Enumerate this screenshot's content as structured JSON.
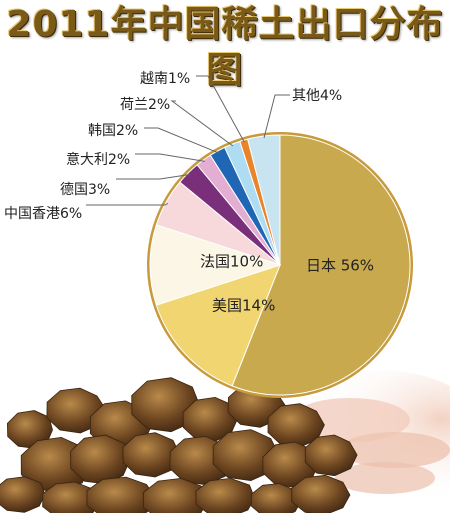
{
  "title": "2011年中国稀土出口分布图",
  "colors": {
    "title": "#7a5a18",
    "pie_rim": "#c89a3c",
    "leader": "#666666"
  },
  "chart_data": {
    "type": "pie",
    "title": "2011年中国稀土出口分布图",
    "slices": [
      {
        "label": "日本",
        "value": 56,
        "text": "日本 56%",
        "color": "#c9a94e"
      },
      {
        "label": "美国",
        "value": 14,
        "text": "美国14%",
        "color": "#f0d570"
      },
      {
        "label": "法国",
        "value": 10,
        "text": "法国10%",
        "color": "#fbf6e6"
      },
      {
        "label": "中国香港",
        "value": 6,
        "text": "中国香港6%",
        "color": "#f7d9dc"
      },
      {
        "label": "德国",
        "value": 3,
        "text": "德国3%",
        "color": "#7a2f7a"
      },
      {
        "label": "意大利",
        "value": 2,
        "text": "意大利2%",
        "color": "#e4aed3"
      },
      {
        "label": "韩国",
        "value": 2,
        "text": "韩国2%",
        "color": "#1f66b5"
      },
      {
        "label": "荷兰",
        "value": 2,
        "text": "荷兰2%",
        "color": "#aedcf2"
      },
      {
        "label": "越南",
        "value": 1,
        "text": "越南1%",
        "color": "#e8842a"
      },
      {
        "label": "其他",
        "value": 4,
        "text": "其他4%",
        "color": "#c7e4f0"
      }
    ],
    "start_angle_deg": 0,
    "direction": "clockwise"
  }
}
